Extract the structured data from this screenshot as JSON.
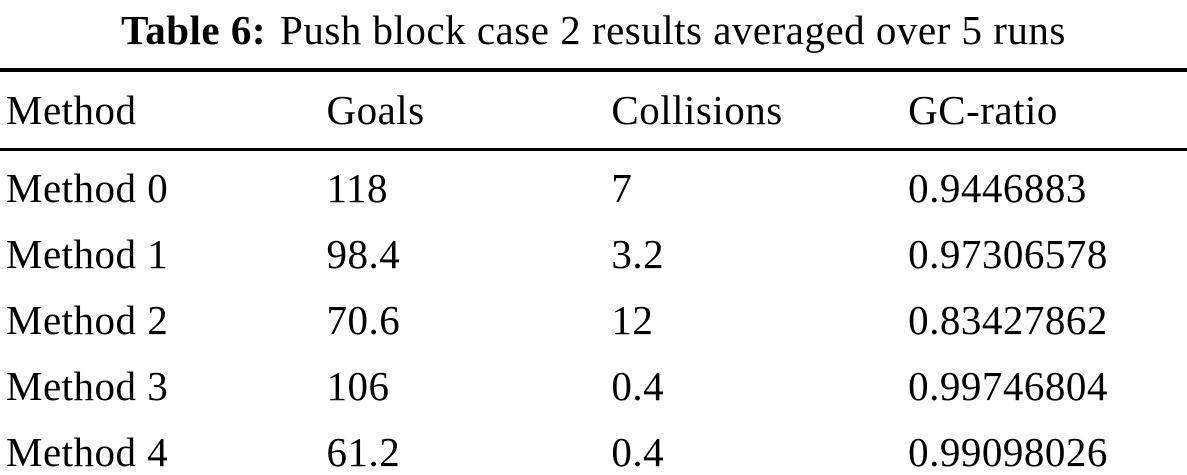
{
  "caption": {
    "label": "Table 6:",
    "text": "Push block case 2 results averaged over 5 runs"
  },
  "table": {
    "columns": [
      "Method",
      "Goals",
      "Collisions",
      "GC-ratio"
    ],
    "rows": [
      {
        "method": "Method 0",
        "goals": "118",
        "collisions": "7",
        "gc_ratio": "0.9446883"
      },
      {
        "method": "Method 1",
        "goals": "98.4",
        "collisions": "3.2",
        "gc_ratio": "0.97306578"
      },
      {
        "method": "Method 2",
        "goals": "70.6",
        "collisions": "12",
        "gc_ratio": "0.83427862"
      },
      {
        "method": "Method 3",
        "goals": "106",
        "collisions": "0.4",
        "gc_ratio": "0.99746804"
      },
      {
        "method": "Method 4",
        "goals": "61.2",
        "collisions": "0.4",
        "gc_ratio": "0.99098026"
      }
    ]
  }
}
